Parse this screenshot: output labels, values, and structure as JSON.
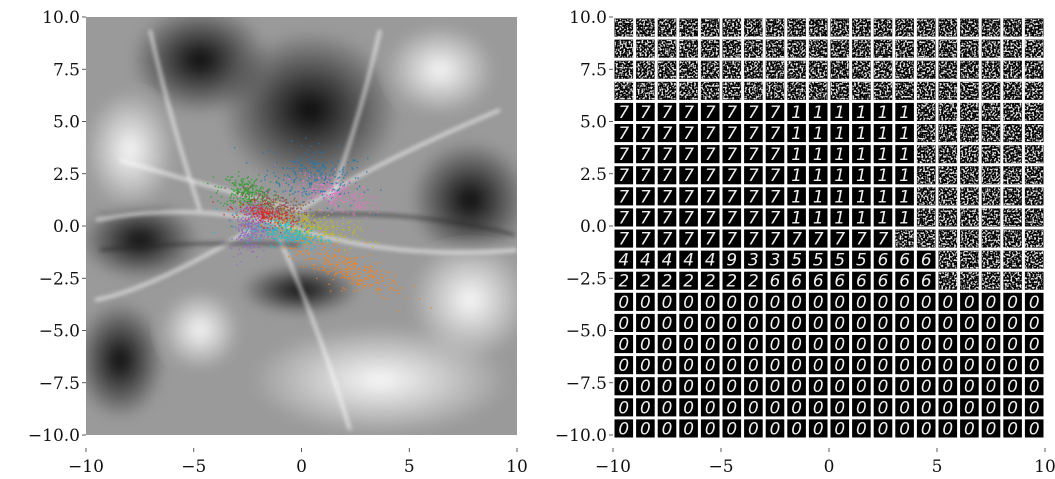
{
  "chart_data": [
    {
      "type": "heatmap",
      "title": "",
      "xlabel": "",
      "ylabel": "",
      "xlim": [
        -10,
        10
      ],
      "ylim": [
        -10,
        10
      ],
      "x_ticks": [
        -10,
        -5,
        0,
        5,
        10
      ],
      "y_ticks": [
        10.0,
        7.5,
        5.0,
        2.5,
        0.0,
        -2.5,
        -5.0,
        -7.5,
        -10.0
      ],
      "x_tick_labels": [
        "−10",
        "−5",
        "0",
        "5",
        "10"
      ],
      "y_tick_labels": [
        "10.0",
        "7.5",
        "5.0",
        "2.5",
        "0.0",
        "−2.5",
        "−5.0",
        "−7.5",
        "−10.0"
      ],
      "grid": false,
      "background": "grayscale density field",
      "clusters": [
        {
          "center": [
            0.6,
            2.4
          ],
          "color": "#1f77b4"
        },
        {
          "center": [
            1.6,
            1.5
          ],
          "color": "#e377c2"
        },
        {
          "center": [
            -2.6,
            1.6
          ],
          "color": "#2ca02c"
        },
        {
          "center": [
            -1.2,
            1.0
          ],
          "color": "#8c564b"
        },
        {
          "center": [
            -1.6,
            0.5
          ],
          "color": "#d62728"
        },
        {
          "center": [
            0.3,
            0.0
          ],
          "color": "#bcbd22"
        },
        {
          "center": [
            -0.8,
            -0.3
          ],
          "color": "#17becf"
        },
        {
          "center": [
            -2.4,
            0.0
          ],
          "color": "#9467bd"
        },
        {
          "center": [
            2.0,
            -2.0
          ],
          "color": "#ff7f0e"
        }
      ]
    },
    {
      "type": "image_grid",
      "title": "",
      "xlabel": "",
      "ylabel": "",
      "xlim": [
        -10,
        10
      ],
      "ylim": [
        -10,
        10
      ],
      "x_ticks": [
        -10,
        -5,
        0,
        5,
        10
      ],
      "y_ticks": [
        10.0,
        7.5,
        5.0,
        2.5,
        0.0,
        -2.5,
        -5.0,
        -7.5,
        -10.0
      ],
      "x_tick_labels": [
        "−10",
        "−5",
        "0",
        "5",
        "10"
      ],
      "y_tick_labels": [
        "10.0",
        "7.5",
        "5.0",
        "2.5",
        "0.0",
        "−2.5",
        "−5.0",
        "−7.5",
        "−10.0"
      ],
      "grid_rows": 20,
      "grid_cols": 20,
      "content": "decoded digit images sampled over latent grid"
    }
  ]
}
